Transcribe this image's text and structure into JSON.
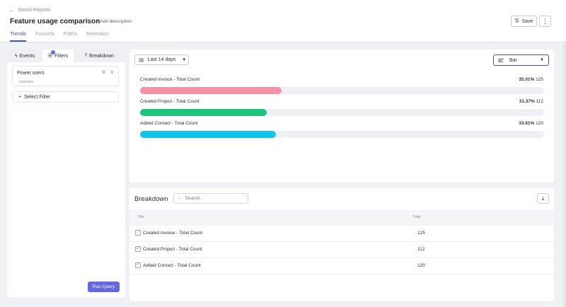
{
  "header": {
    "back_label": "Saved Reports",
    "title": "Feature usage comparison",
    "add_description": "Add description",
    "save_label": "Save",
    "tabs": [
      {
        "label": "Trends",
        "active": true
      },
      {
        "label": "Funnels",
        "active": false
      },
      {
        "label": "Paths",
        "active": false
      },
      {
        "label": "Retention",
        "active": false
      }
    ]
  },
  "left_panel": {
    "tabs": [
      {
        "label": "Events",
        "icon": "bolt-icon"
      },
      {
        "label": "Filters",
        "icon": "filter-lines-icon"
      },
      {
        "label": "Breakdown",
        "icon": "breakdown-icon"
      }
    ],
    "filter": {
      "name": "Power users",
      "sub": "matches"
    },
    "select_filter_label": "Select Filter",
    "run_query_label": "Run Query"
  },
  "chart": {
    "date_range": "Last 14 days",
    "chart_type": "Bar",
    "accent": "#3d56b2"
  },
  "chart_data": {
    "type": "bar",
    "orientation": "horizontal",
    "categories": [
      "Created Invoice - Total Count",
      "Created Project - Total Count",
      "Added Contact - Total Count"
    ],
    "values": [
      125,
      112,
      120
    ],
    "percent_labels": [
      "35.01%",
      "31.37%",
      "33.61%"
    ],
    "percents": [
      35.01,
      31.37,
      33.61
    ],
    "colors": [
      "#f792a6",
      "#1fc47c",
      "#12c6ea"
    ]
  },
  "breakdown": {
    "title": "Breakdown",
    "search_placeholder": "Search..",
    "columns": [
      "Title",
      "Total"
    ],
    "rows": [
      {
        "title": "Created Invoice - Total Count",
        "total": "125",
        "check_color": "#f792a6"
      },
      {
        "title": "Created Project - Total Count",
        "total": "112",
        "check_color": "#1a9a61"
      },
      {
        "title": "Added Contact - Total Count",
        "total": "120",
        "check_color": "#1aa7c8"
      }
    ]
  }
}
